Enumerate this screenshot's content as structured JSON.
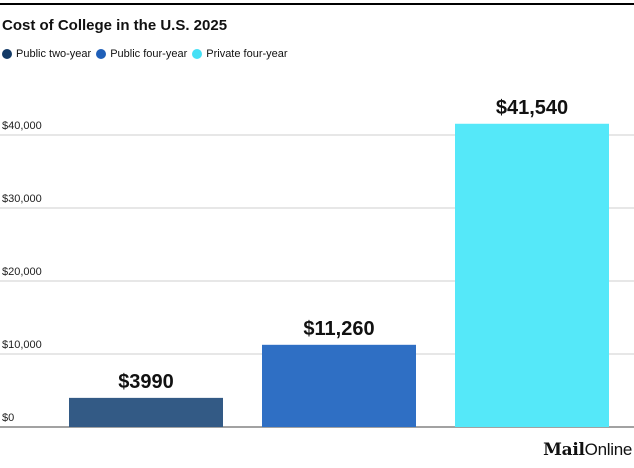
{
  "chart_data": {
    "type": "bar",
    "title": "Cost of College in the U.S. 2025",
    "categories": [
      "Public two-year",
      "Public four-year",
      "Private four-year"
    ],
    "values": [
      3990,
      11260,
      41540
    ],
    "value_labels": [
      "$3990",
      "$11,260",
      "$41,540"
    ],
    "colors": [
      "#335A85",
      "#2F6FC4",
      "#55E8F9"
    ],
    "legend": [
      {
        "name": "Public two-year",
        "color": "#133A66"
      },
      {
        "name": "Public four-year",
        "color": "#1F5FB8"
      },
      {
        "name": "Private four-year",
        "color": "#45E0F5"
      }
    ],
    "legend_position": "top-left",
    "y_ticks": [
      0,
      10000,
      20000,
      30000,
      40000
    ],
    "y_tick_labels": [
      "$0",
      "$10,000",
      "$20,000",
      "$30,000",
      "$40,000"
    ],
    "ylim": [
      0,
      40000
    ],
    "grid": true
  },
  "brand": {
    "part1": "Mail",
    "part2": "Online"
  }
}
